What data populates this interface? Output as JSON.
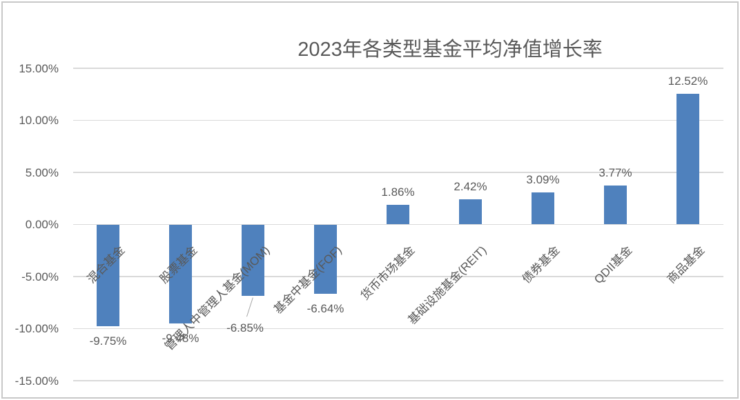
{
  "chart_data": {
    "type": "bar",
    "title": "2023年各类型基金平均净值增长率",
    "categories": [
      "混合基金",
      "股票基金",
      "管理人中管理人基金(MOM)",
      "基金中基金(FOF)",
      "货币市场基金",
      "基础设施基金(REIT)",
      "债券基金",
      "QDII基金",
      "商品基金"
    ],
    "values": [
      -9.75,
      -9.48,
      -6.85,
      -6.64,
      1.86,
      2.42,
      3.09,
      3.77,
      12.52
    ],
    "data_labels": [
      "-9.75%",
      "-9.48%",
      "-6.85%",
      "-6.64%",
      "1.86%",
      "2.42%",
      "3.09%",
      "3.77%",
      "12.52%"
    ],
    "callout_index": 2,
    "y_ticks": [
      {
        "label": "15.00%",
        "value": 15
      },
      {
        "label": "10.00%",
        "value": 10
      },
      {
        "label": "5.00%",
        "value": 5
      },
      {
        "label": "0.00%",
        "value": 0
      },
      {
        "label": "-5.00%",
        "value": -5
      },
      {
        "label": "-10.00%",
        "value": -10
      },
      {
        "label": "-15.00%",
        "value": -15
      }
    ],
    "ylim": [
      -15,
      15
    ],
    "xlabel": "",
    "ylabel": "",
    "x_label_rotation_deg": 45,
    "grid": "horizontal",
    "legend": "none",
    "colors": {
      "bar": "#4F81BD",
      "gridline": "#D9D9D9",
      "text": "#595959",
      "title": "#595959",
      "leader_line": "#A6A6A6",
      "background": "#FFFFFF",
      "frame_border": "#C8C8C8"
    }
  }
}
